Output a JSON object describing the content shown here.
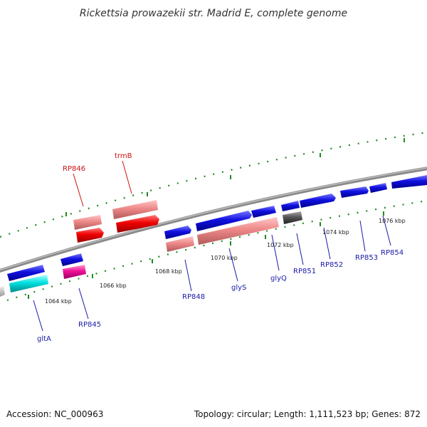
{
  "title": "Rickettsia prowazekii str. Madrid E, complete genome",
  "footer": {
    "accession": "Accession: NC_000963",
    "stats": "Topology: circular; Length: 1,111,523 bp; Genes: 872"
  },
  "colors": {
    "backbone": "#8a8a8a",
    "tick": "#1f8a1f",
    "forward_label": "#cc1111",
    "reverse_label": "#1a1aaa",
    "gene_blue": "#1010e0",
    "gene_pink": "#ee8888",
    "gene_red": "#ee0000",
    "gene_cyan": "#00e0e0",
    "gene_magenta": "#ee1199",
    "gene_gray": "#555555"
  },
  "kbp_labels": [
    "1064 kbp",
    "1066 kbp",
    "1068 kbp",
    "1070 kbp",
    "1072 kbp",
    "1074 kbp",
    "1076 kbp"
  ],
  "gene_labels": {
    "rp846": "RP846",
    "trmb": "trmB",
    "glta": "gltA",
    "rp845": "RP845",
    "rp848": "RP848",
    "glys": "glyS",
    "glyq": "glyQ",
    "rp851": "RP851",
    "rp852": "RP852",
    "rp853": "RP853",
    "rp854": "RP854"
  }
}
